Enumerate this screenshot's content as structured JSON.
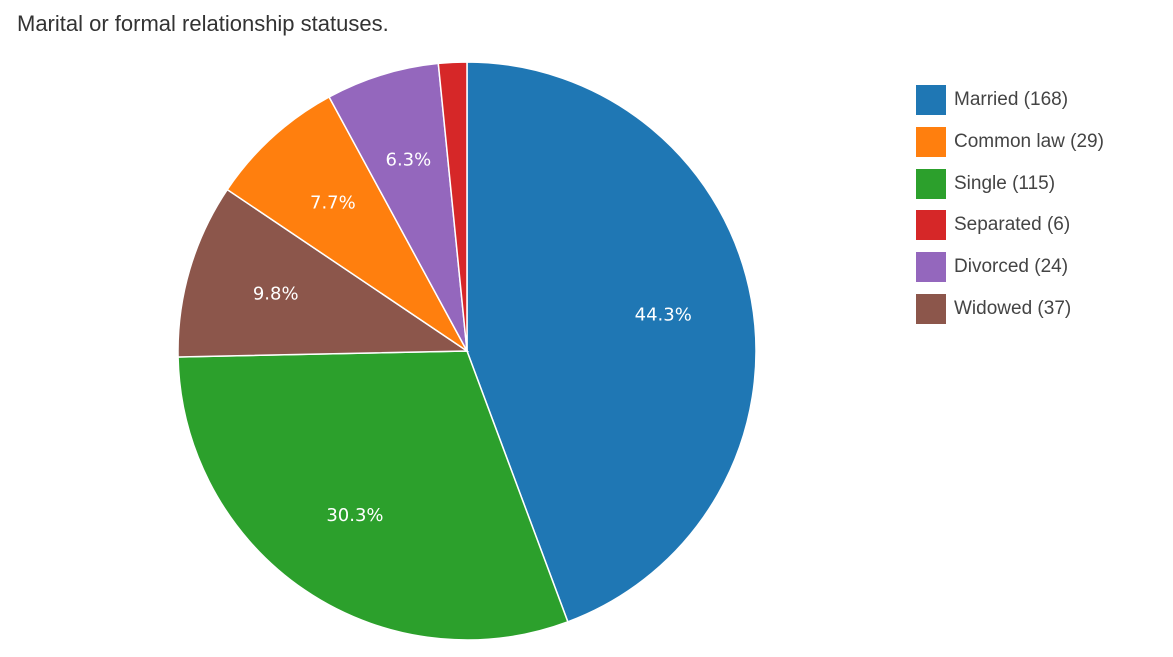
{
  "chart_data": {
    "type": "pie",
    "title": "Marital or formal relationship statuses.",
    "slices": [
      {
        "label": "Married",
        "count": 168,
        "legend": "Married (168)",
        "percent_label": "44.3%",
        "color": "#1f77b4"
      },
      {
        "label": "Single",
        "count": 115,
        "legend": "Single (115)",
        "percent_label": "30.3%",
        "color": "#2ca02c"
      },
      {
        "label": "Widowed",
        "count": 37,
        "legend": "Widowed (37)",
        "percent_label": "9.8%",
        "color": "#8c564b"
      },
      {
        "label": "Common law",
        "count": 29,
        "legend": "Common law (29)",
        "percent_label": "7.7%",
        "color": "#ff7f0e"
      },
      {
        "label": "Divorced",
        "count": 24,
        "legend": "Divorced (24)",
        "percent_label": "6.3%",
        "color": "#9467bd"
      },
      {
        "label": "Separated",
        "count": 6,
        "legend": "Separated (6)",
        "percent_label": "",
        "color": "#d62728"
      }
    ],
    "legend_order": [
      {
        "legend": "Married (168)",
        "color": "#1f77b4"
      },
      {
        "legend": "Common law (29)",
        "color": "#ff7f0e"
      },
      {
        "legend": "Single (115)",
        "color": "#2ca02c"
      },
      {
        "legend": "Separated (6)",
        "color": "#d62728"
      },
      {
        "legend": "Divorced (24)",
        "color": "#9467bd"
      },
      {
        "legend": "Widowed (37)",
        "color": "#8c564b"
      }
    ],
    "legend_position": "right"
  }
}
